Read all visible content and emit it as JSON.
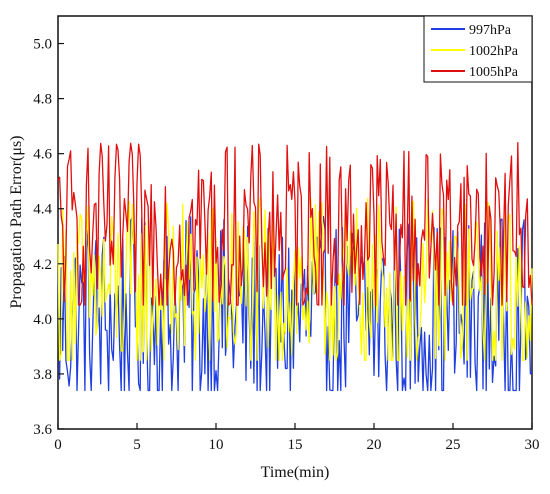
{
  "chart_data": {
    "type": "line",
    "title": "",
    "xlabel": "Time(min)",
    "ylabel": "Propagation Path Error(μs)",
    "xlim": [
      0,
      30
    ],
    "ylim": [
      3.6,
      5.1
    ],
    "xticks": [
      "0",
      "5",
      "10",
      "15",
      "20",
      "25",
      "30"
    ],
    "yticks": [
      "3.6",
      "3.8",
      "4.0",
      "4.2",
      "4.4",
      "4.6",
      "4.8",
      "5.0"
    ],
    "grid": false,
    "legend_position": "top-right",
    "series": [
      {
        "name": "997hPa",
        "color": "#1f3fe0",
        "approx_mean": 4.0,
        "approx_min": 3.74,
        "approx_max": 4.45,
        "x_step": 0.1,
        "note_range_only": false
      },
      {
        "name": "1002hPa",
        "color": "#ffff00",
        "approx_mean": 4.1,
        "approx_min": 3.85,
        "approx_max": 4.5,
        "x_step": 0.1
      },
      {
        "name": "1005hPa",
        "color": "#e01010",
        "approx_mean": 4.32,
        "approx_min": 4.05,
        "approx_max": 4.66,
        "x_step": 0.1
      }
    ]
  }
}
